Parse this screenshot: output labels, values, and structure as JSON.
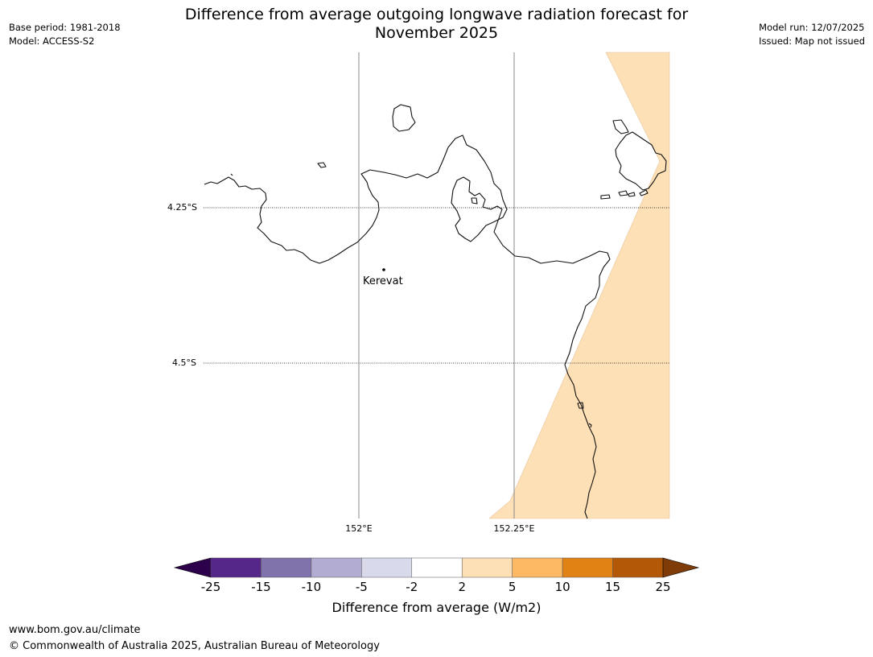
{
  "title": {
    "line1": "Difference from average outgoing longwave radiation forecast for",
    "line2": "November 2025"
  },
  "meta_left": {
    "base_period": "Base period: 1981-2018",
    "model": "Model: ACCESS-S2"
  },
  "meta_right": {
    "model_run": "Model run: 12/07/2025",
    "issued": "Issued: Map not issued"
  },
  "map": {
    "place_label": "Kerevat",
    "lat_labels": [
      "4.25°S",
      "4.5°S"
    ],
    "lon_labels": [
      "152°E",
      "152.25°E"
    ],
    "anomaly_fill_color": "#fde0b6"
  },
  "colorbar": {
    "label": "Difference from average (W/m2)",
    "ticks": [
      "-25",
      "-15",
      "-10",
      "-5",
      "-2",
      "2",
      "5",
      "10",
      "15",
      "25"
    ],
    "colors": [
      "#542788",
      "#8073ac",
      "#b2abd2",
      "#d8daeb",
      "#ffffff",
      "#fee0b6",
      "#fdb863",
      "#e08214",
      "#b35806"
    ],
    "under_color": "#2d004b",
    "over_color": "#7f3b08"
  },
  "footer": {
    "url": "www.bom.gov.au/climate",
    "copyright": "© Commonwealth of Australia 2025, Australian Bureau of Meteorology"
  }
}
